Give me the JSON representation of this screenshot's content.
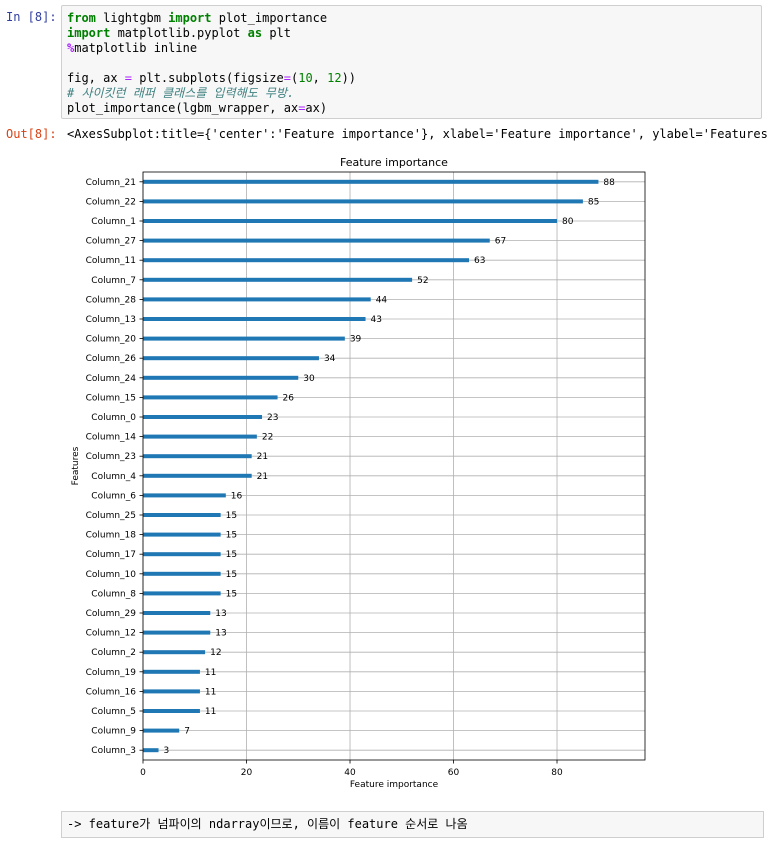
{
  "input_cell": {
    "prompt": "In [8]:",
    "lines": [
      [
        {
          "t": "from",
          "c": "kw"
        },
        {
          "t": " lightgbm ",
          "c": ""
        },
        {
          "t": "import",
          "c": "kw"
        },
        {
          "t": " plot_importance",
          "c": ""
        }
      ],
      [
        {
          "t": "import",
          "c": "kw"
        },
        {
          "t": " matplotlib.pyplot ",
          "c": ""
        },
        {
          "t": "as",
          "c": "kw"
        },
        {
          "t": " plt",
          "c": ""
        }
      ],
      [
        {
          "t": "%",
          "c": "mg"
        },
        {
          "t": "matplotlib inline",
          "c": ""
        }
      ],
      [],
      [
        {
          "t": "fig, ax ",
          "c": ""
        },
        {
          "t": "=",
          "c": "op"
        },
        {
          "t": " plt.subplots(figsize",
          "c": ""
        },
        {
          "t": "=",
          "c": "op"
        },
        {
          "t": "(",
          "c": ""
        },
        {
          "t": "10",
          "c": "num"
        },
        {
          "t": ", ",
          "c": ""
        },
        {
          "t": "12",
          "c": "num"
        },
        {
          "t": "))",
          "c": ""
        }
      ],
      [
        {
          "t": "# 사이킷런 래퍼 클래스를 입력해도 무방.",
          "c": "cm"
        }
      ],
      [
        {
          "t": "plot_importance(lgbm_wrapper, ax",
          "c": ""
        },
        {
          "t": "=",
          "c": "op"
        },
        {
          "t": "ax)",
          "c": ""
        }
      ]
    ]
  },
  "output_cell": {
    "prompt": "Out[8]:",
    "text": "<AxesSubplot:title={'center':'Feature importance'}, xlabel='Feature importance', ylabel='Features'>"
  },
  "chart_data": {
    "type": "bar",
    "orientation": "horizontal",
    "title": "Feature importance",
    "xlabel": "Feature importance",
    "ylabel": "Features",
    "xlim": [
      0,
      97
    ],
    "xticks": [
      0,
      20,
      40,
      60,
      80
    ],
    "grid": true,
    "bar_color": "#1f77b4",
    "categories": [
      "Column_21",
      "Column_22",
      "Column_1",
      "Column_27",
      "Column_11",
      "Column_7",
      "Column_28",
      "Column_13",
      "Column_20",
      "Column_26",
      "Column_24",
      "Column_15",
      "Column_0",
      "Column_14",
      "Column_23",
      "Column_4",
      "Column_6",
      "Column_25",
      "Column_18",
      "Column_17",
      "Column_10",
      "Column_8",
      "Column_29",
      "Column_12",
      "Column_2",
      "Column_19",
      "Column_16",
      "Column_5",
      "Column_9",
      "Column_3"
    ],
    "values": [
      88,
      85,
      80,
      67,
      63,
      52,
      44,
      43,
      39,
      34,
      30,
      26,
      23,
      22,
      21,
      21,
      16,
      15,
      15,
      15,
      15,
      15,
      13,
      13,
      12,
      11,
      11,
      11,
      7,
      3
    ]
  },
  "markdown_cell": {
    "text": "-> feature가 넘파이의 ndarray이므로, 이름이 feature 순서로 나옴"
  }
}
